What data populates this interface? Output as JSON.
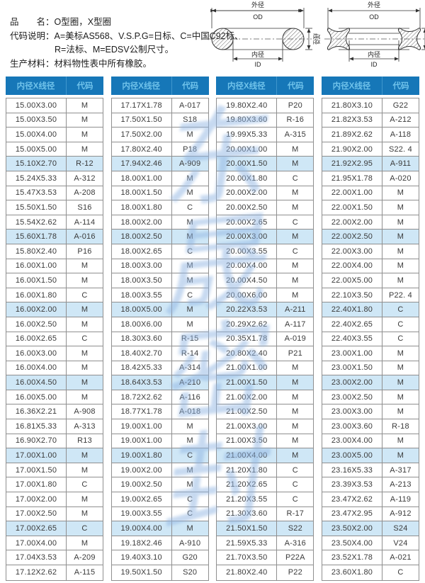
{
  "info": {
    "line1": "品　　名：O型圈，X型圈",
    "line2": "代码说明：A=美标AS568、V.S.P.G=日标、C=中国C92标、",
    "line3": "R=法标、M=EDSV公制尺寸。",
    "line4": "生产材料：材料物性表中所有橡胶。"
  },
  "diagrams": {
    "od_label": "外径",
    "od_code": "OD",
    "id_label": "内径",
    "id_code": "ID",
    "cs_label": "线径",
    "cs_code": "C/S"
  },
  "watermark": {
    "chars": [
      "东",
      "晟",
      "密",
      "封"
    ]
  },
  "colors": {
    "header_bg": "#1677b8",
    "header_text": "#6fc2ea",
    "row_highlight": "#cfe7f6",
    "grid_line": "#8f8f8f"
  },
  "table": {
    "headers": [
      "内径X线径",
      "代码"
    ],
    "highlight_every": 5,
    "columns": [
      {
        "rows": [
          [
            "15.00X3.00",
            "M"
          ],
          [
            "15.00X3.50",
            "M"
          ],
          [
            "15.00X4.00",
            "M"
          ],
          [
            "15.00X5.00",
            "M"
          ],
          [
            "15.10X2.70",
            "R-12"
          ],
          [
            "15.24X5.33",
            "A-312"
          ],
          [
            "15.47X3.53",
            "A-208"
          ],
          [
            "15.50X1.50",
            "S16"
          ],
          [
            "15.54X2.62",
            "A-114"
          ],
          [
            "15.60X1.78",
            "A-016"
          ],
          [
            "15.80X2.40",
            "P16"
          ],
          [
            "16.00X1.00",
            "M"
          ],
          [
            "16.00X1.50",
            "M"
          ],
          [
            "16.00X1.80",
            "C"
          ],
          [
            "16.00X2.00",
            "M"
          ],
          [
            "16.00X2.50",
            "M"
          ],
          [
            "16.00X2.65",
            "C"
          ],
          [
            "16.00X3.00",
            "M"
          ],
          [
            "16.00X4.00",
            "M"
          ],
          [
            "16.00X4.50",
            "M"
          ],
          [
            "16.00X5.00",
            "M"
          ],
          [
            "16.36X2.21",
            "A-908"
          ],
          [
            "16.81X5.33",
            "A-313"
          ],
          [
            "16.90X2.70",
            "R13"
          ],
          [
            "17.00X1.00",
            "M"
          ],
          [
            "17.00X1.50",
            "M"
          ],
          [
            "17.00X1.80",
            "C"
          ],
          [
            "17.00X2.00",
            "M"
          ],
          [
            "17.00X2.50",
            "M"
          ],
          [
            "17.00X2.65",
            "C"
          ],
          [
            "17.00X4.00",
            "M"
          ],
          [
            "17.04X3.53",
            "A-209"
          ],
          [
            "17.12X2.62",
            "A-115"
          ]
        ]
      },
      {
        "rows": [
          [
            "17.17X1.78",
            "A-017"
          ],
          [
            "17.50X1.50",
            "S18"
          ],
          [
            "17.50X2.00",
            "M"
          ],
          [
            "17.80X2.40",
            "P18"
          ],
          [
            "17.94X2.46",
            "A-909"
          ],
          [
            "18.00X1.00",
            "M"
          ],
          [
            "18.00X1.50",
            "M"
          ],
          [
            "18.00X1.80",
            "C"
          ],
          [
            "18.00X2.00",
            "M"
          ],
          [
            "18.00X2.50",
            "M"
          ],
          [
            "18.00X2.65",
            "C"
          ],
          [
            "18.00X3.00",
            "M"
          ],
          [
            "18.00X3.50",
            "M"
          ],
          [
            "18.00X3.55",
            "C"
          ],
          [
            "18.00X5.00",
            "M"
          ],
          [
            "18.00X6.00",
            "M"
          ],
          [
            "18.30X3.60",
            "R-15"
          ],
          [
            "18.40X2.70",
            "R-14"
          ],
          [
            "18.42X5.33",
            "A-314"
          ],
          [
            "18.64X3.53",
            "A-210"
          ],
          [
            "18.72X2.62",
            "A-116"
          ],
          [
            "18.77X1.78",
            "A-018"
          ],
          [
            "19.00X1.00",
            "M"
          ],
          [
            "19.00X1.00",
            "M"
          ],
          [
            "19.00X1.80",
            "C"
          ],
          [
            "19.00X2.00",
            "M"
          ],
          [
            "19.00X2.50",
            "M"
          ],
          [
            "19.00X2.65",
            "C"
          ],
          [
            "19.00X3.55",
            "C"
          ],
          [
            "19.00X4.00",
            "M"
          ],
          [
            "19.18X2.46",
            "A-910"
          ],
          [
            "19.40X3.10",
            "G20"
          ],
          [
            "19.50X1.50",
            "S20"
          ]
        ]
      },
      {
        "rows": [
          [
            "19.80X2.40",
            "P20"
          ],
          [
            "19.80X3.60",
            "R-16"
          ],
          [
            "19.99X5.33",
            "A-315"
          ],
          [
            "20.00X1.00",
            "M"
          ],
          [
            "20.00X1.50",
            "M"
          ],
          [
            "20.00X1.80",
            "C"
          ],
          [
            "20.00X2.00",
            "M"
          ],
          [
            "20.00X2.50",
            "M"
          ],
          [
            "20.00X2.65",
            "C"
          ],
          [
            "20.00X3.00",
            "M"
          ],
          [
            "20.00X3.55",
            "C"
          ],
          [
            "20.00X4.00",
            "M"
          ],
          [
            "20.00X4.50",
            "M"
          ],
          [
            "20.00X6.00",
            "M"
          ],
          [
            "20.22X3.53",
            "A-211"
          ],
          [
            "20.29X2.62",
            "A-117"
          ],
          [
            "20.35X1.78",
            "A-019"
          ],
          [
            "20.80X2.40",
            "P21"
          ],
          [
            "21.00X1.00",
            "M"
          ],
          [
            "21.00X1.50",
            "M"
          ],
          [
            "21.00X2.00",
            "M"
          ],
          [
            "21.00X2.50",
            "M"
          ],
          [
            "21.00X3.00",
            "M"
          ],
          [
            "21.00X3.50",
            "M"
          ],
          [
            "21.00X4.00",
            "M"
          ],
          [
            "21.20X1.80",
            "C"
          ],
          [
            "21.20X2.65",
            "C"
          ],
          [
            "21.20X3.55",
            "C"
          ],
          [
            "21.30X3.60",
            "R-17"
          ],
          [
            "21.50X1.50",
            "S22"
          ],
          [
            "21.59X5.33",
            "A-316"
          ],
          [
            "21.70X3.50",
            "P22A"
          ],
          [
            "21.80X2.40",
            "P22"
          ]
        ]
      },
      {
        "rows": [
          [
            "21.80X3.10",
            "G22"
          ],
          [
            "21.82X3.53",
            "A-212"
          ],
          [
            "21.89X2.62",
            "A-118"
          ],
          [
            "21.90X2.00",
            "S22. 4"
          ],
          [
            "21.92X2.95",
            "A-911"
          ],
          [
            "21.95X1.78",
            "A-020"
          ],
          [
            "22.00X1.00",
            "M"
          ],
          [
            "22.00X1.50",
            "M"
          ],
          [
            "22.00X2.00",
            "M"
          ],
          [
            "22.00X2.50",
            "M"
          ],
          [
            "22.00X3.00",
            "M"
          ],
          [
            "22.00X4.00",
            "M"
          ],
          [
            "22.00X5.00",
            "M"
          ],
          [
            "22.10X3.50",
            "P22. 4"
          ],
          [
            "22.40X1.80",
            "C"
          ],
          [
            "22.40X2.65",
            "C"
          ],
          [
            "22.40X3.55",
            "C"
          ],
          [
            "23.00X1.00",
            "M"
          ],
          [
            "23.00X1.50",
            "M"
          ],
          [
            "23.00X2.00",
            "M"
          ],
          [
            "23.00X2.50",
            "M"
          ],
          [
            "23.00X3.00",
            "M"
          ],
          [
            "23.00X3.60",
            "R-18"
          ],
          [
            "23.00X4.00",
            "M"
          ],
          [
            "23.00X5.00",
            "M"
          ],
          [
            "23.16X5.33",
            "A-317"
          ],
          [
            "23.39X3.53",
            "A-213"
          ],
          [
            "23.47X2.62",
            "A-119"
          ],
          [
            "23.47X2.95",
            "A-912"
          ],
          [
            "23.50X2.00",
            "S24"
          ],
          [
            "23.50X4.00",
            "V24"
          ],
          [
            "23.52X1.78",
            "A-021"
          ],
          [
            "23.60X1.80",
            "C"
          ]
        ]
      }
    ]
  }
}
